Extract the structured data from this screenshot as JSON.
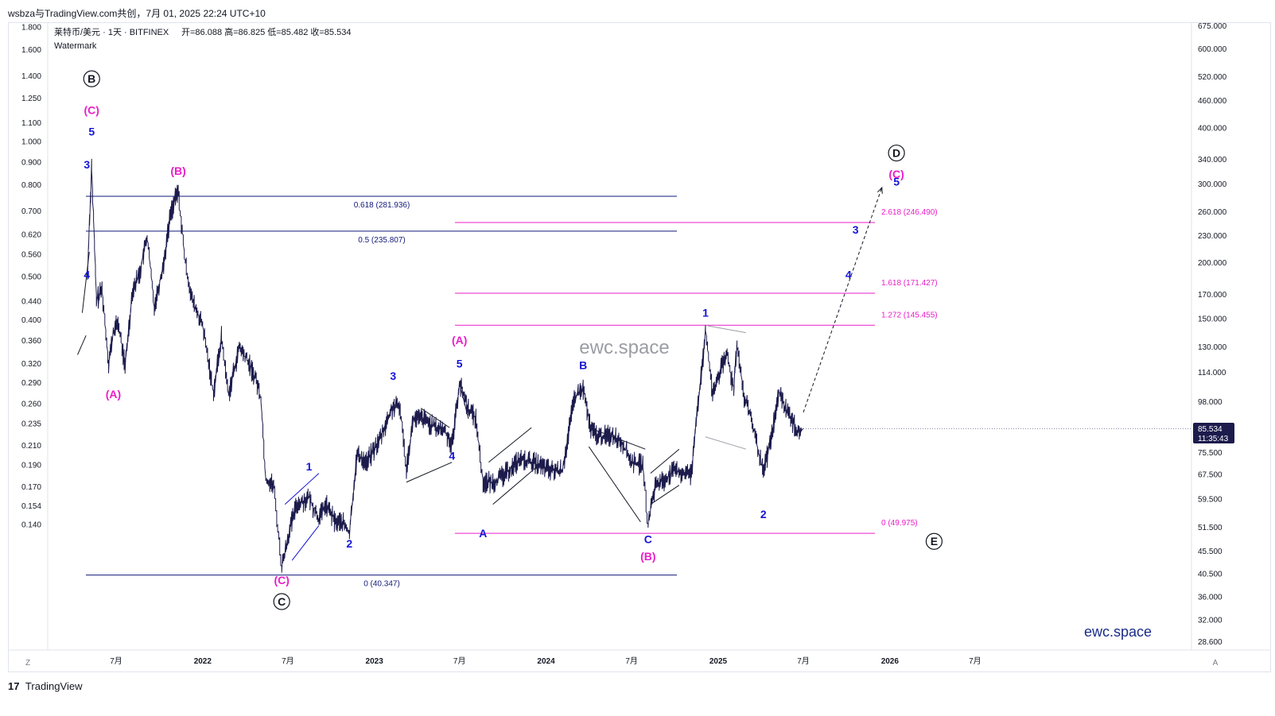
{
  "header": {
    "credit": "wsbza与TradingView.com共创，7月 01, 2025 22:24 UTC+10"
  },
  "legend": {
    "symbol": "莱特币/美元 · 1天 · BITFINEX",
    "ohlc": "开=86.088  高=86.825  低=85.482  收=85.534",
    "watermark_label": "Watermark"
  },
  "watermark": {
    "center": "ewc.space",
    "corner": "ewc.space"
  },
  "footer": {
    "brand": "TradingView",
    "logo_glyph": "17"
  },
  "corner_buttons": {
    "left": "Z",
    "right": "A"
  },
  "last_price": {
    "value": "85.534",
    "countdown": "11:35:43"
  },
  "colors": {
    "blue": "#1515d6",
    "magenta": "#e91ec8",
    "navy": "#131a7a",
    "price": "#1c1b4c",
    "grey": "#9b9ea6"
  },
  "chart_data": {
    "type": "candlestick",
    "title": "莱特币/美元 · 1天 · BITFINEX",
    "left_axis_ticks": [
      "1.800",
      "1.600",
      "1.400",
      "1.250",
      "1.100",
      "1.000",
      "0.900",
      "0.800",
      "0.700",
      "0.620",
      "0.560",
      "0.500",
      "0.440",
      "0.400",
      "0.360",
      "0.320",
      "0.290",
      "0.260",
      "0.235",
      "0.210",
      "0.190",
      "0.170",
      "0.154",
      "0.140"
    ],
    "right_axis_ticks": [
      "675.000",
      "600.000",
      "520.000",
      "460.000",
      "400.000",
      "340.000",
      "300.000",
      "260.000",
      "230.000",
      "200.000",
      "170.000",
      "150.000",
      "130.000",
      "114.000",
      "98.000",
      "75.500",
      "67.500",
      "59.500",
      "51.500",
      "45.500",
      "40.500",
      "36.000",
      "32.000",
      "28.600"
    ],
    "x_axis_ticks": [
      "7月",
      "2022",
      "7月",
      "2023",
      "7月",
      "2024",
      "7月",
      "2025",
      "7月",
      "2026",
      "7月"
    ],
    "y_scale": "log",
    "ylim": [
      28.6,
      675
    ],
    "price_path": [
      [
        "2021-05-01",
        190
      ],
      [
        "2021-05-10",
        330
      ],
      [
        "2021-05-20",
        165
      ],
      [
        "2021-06-01",
        175
      ],
      [
        "2021-06-15",
        120
      ],
      [
        "2021-06-25",
        140
      ],
      [
        "2021-07-05",
        148
      ],
      [
        "2021-07-20",
        118
      ],
      [
        "2021-08-05",
        175
      ],
      [
        "2021-08-20",
        190
      ],
      [
        "2021-09-05",
        230
      ],
      [
        "2021-09-20",
        160
      ],
      [
        "2021-10-10",
        200
      ],
      [
        "2021-10-25",
        260
      ],
      [
        "2021-11-10",
        290
      ],
      [
        "2021-11-25",
        200
      ],
      [
        "2021-12-10",
        165
      ],
      [
        "2022-01-01",
        145
      ],
      [
        "2022-01-24",
        103
      ],
      [
        "2022-02-10",
        137
      ],
      [
        "2022-02-25",
        102
      ],
      [
        "2022-03-20",
        130
      ],
      [
        "2022-04-05",
        122
      ],
      [
        "2022-04-25",
        110
      ],
      [
        "2022-05-05",
        100
      ],
      [
        "2022-05-15",
        66
      ],
      [
        "2022-06-01",
        64
      ],
      [
        "2022-06-18",
        42
      ],
      [
        "2022-07-05",
        51
      ],
      [
        "2022-07-20",
        58
      ],
      [
        "2022-08-15",
        60
      ],
      [
        "2022-09-05",
        54
      ],
      [
        "2022-09-20",
        58
      ],
      [
        "2022-10-10",
        53
      ],
      [
        "2022-10-25",
        53
      ],
      [
        "2022-11-09",
        50
      ],
      [
        "2022-11-25",
        75
      ],
      [
        "2022-12-15",
        72
      ],
      [
        "2023-01-10",
        80
      ],
      [
        "2023-02-10",
        96
      ],
      [
        "2023-02-25",
        95
      ],
      [
        "2023-03-10",
        70
      ],
      [
        "2023-03-25",
        90
      ],
      [
        "2023-04-15",
        90
      ],
      [
        "2023-05-10",
        86
      ],
      [
        "2023-05-30",
        85
      ],
      [
        "2023-06-15",
        79
      ],
      [
        "2023-07-01",
        108
      ],
      [
        "2023-07-20",
        95
      ],
      [
        "2023-08-05",
        90
      ],
      [
        "2023-08-20",
        65
      ],
      [
        "2023-09-10",
        65
      ],
      [
        "2023-10-01",
        67
      ],
      [
        "2023-11-05",
        73
      ],
      [
        "2023-12-05",
        72
      ],
      [
        "2024-01-10",
        69
      ],
      [
        "2024-02-05",
        69
      ],
      [
        "2024-03-01",
        100
      ],
      [
        "2024-03-20",
        105
      ],
      [
        "2024-04-05",
        85
      ],
      [
        "2024-04-25",
        82
      ],
      [
        "2024-05-20",
        83
      ],
      [
        "2024-06-10",
        80
      ],
      [
        "2024-07-01",
        72
      ],
      [
        "2024-07-25",
        71
      ],
      [
        "2024-08-05",
        52
      ],
      [
        "2024-08-20",
        64
      ],
      [
        "2024-09-10",
        66
      ],
      [
        "2024-10-01",
        69
      ],
      [
        "2024-10-20",
        68
      ],
      [
        "2024-11-05",
        68
      ],
      [
        "2024-11-15",
        90
      ],
      [
        "2024-11-30",
        122
      ],
      [
        "2024-12-05",
        142
      ],
      [
        "2024-12-20",
        102
      ],
      [
        "2025-01-05",
        115
      ],
      [
        "2025-01-20",
        125
      ],
      [
        "2025-02-03",
        105
      ],
      [
        "2025-02-10",
        134
      ],
      [
        "2025-02-25",
        100
      ],
      [
        "2025-03-10",
        92
      ],
      [
        "2025-04-07",
        68
      ],
      [
        "2025-04-25",
        83
      ],
      [
        "2025-05-10",
        103
      ],
      [
        "2025-05-25",
        95
      ],
      [
        "2025-06-10",
        88
      ],
      [
        "2025-06-20",
        84
      ],
      [
        "2025-07-01",
        85.534
      ]
    ],
    "fib_lines": [
      {
        "label": "0.618 (281.936)",
        "price": 281.936
      },
      {
        "label": "0.5 (235.807)",
        "price": 235.807
      },
      {
        "label": "0 (40.347)",
        "price": 40.347
      },
      {
        "label": "2.618 (246.490)",
        "price": 246.49
      },
      {
        "label": "1.618 (171.427)",
        "price": 171.427
      },
      {
        "label": "1.272 (145.455)",
        "price": 145.455
      },
      {
        "label": "0 (49.975)",
        "price": 49.975
      }
    ],
    "wave_labels": [
      {
        "text": "B",
        "date": "2021-05-10",
        "price": 505,
        "circled": true
      },
      {
        "text": "(C)",
        "date": "2021-05-10",
        "price": 430
      },
      {
        "text": "5",
        "date": "2021-05-10",
        "price": 385
      },
      {
        "text": "3",
        "date": "2021-04-30",
        "price": 325
      },
      {
        "text": "4",
        "date": "2021-04-30",
        "price": 185
      },
      {
        "text": "(B)",
        "date": "2021-11-10",
        "price": 315
      },
      {
        "text": "(A)",
        "date": "2021-06-25",
        "price": 100
      },
      {
        "text": "(C)",
        "date": "2022-06-18",
        "price": 38.5
      },
      {
        "text": "C",
        "date": "2022-06-18",
        "price": 34.5,
        "circled": true
      },
      {
        "text": "1",
        "date": "2022-08-15",
        "price": 69
      },
      {
        "text": "2",
        "date": "2022-11-09",
        "price": 46.5
      },
      {
        "text": "3",
        "date": "2023-02-10",
        "price": 110
      },
      {
        "text": "4",
        "date": "2023-06-15",
        "price": 73
      },
      {
        "text": "5",
        "date": "2023-07-01",
        "price": 117
      },
      {
        "text": "(A)",
        "date": "2023-07-01",
        "price": 132
      },
      {
        "text": "A",
        "date": "2023-08-20",
        "price": 49
      },
      {
        "text": "B",
        "date": "2024-03-20",
        "price": 116
      },
      {
        "text": "C",
        "date": "2024-08-05",
        "price": 47.5
      },
      {
        "text": "(B)",
        "date": "2024-08-05",
        "price": 43.5
      },
      {
        "text": "1",
        "date": "2024-12-05",
        "price": 152
      },
      {
        "text": "2",
        "date": "2025-04-07",
        "price": 54
      },
      {
        "text": "3",
        "date": "2025-10-20",
        "price": 233
      },
      {
        "text": "4",
        "date": "2025-10-05",
        "price": 185
      },
      {
        "text": "D",
        "date": "2026-01-15",
        "price": 345,
        "circled": true
      },
      {
        "text": "(C)",
        "date": "2026-01-15",
        "price": 310
      },
      {
        "text": "5",
        "date": "2026-01-15",
        "price": 298
      },
      {
        "text": "E",
        "date": "2026-04-05",
        "price": 47,
        "circled": true
      }
    ],
    "projection": {
      "from": [
        "2025-07-01",
        93
      ],
      "to": [
        "2025-12-15",
        295
      ]
    }
  }
}
